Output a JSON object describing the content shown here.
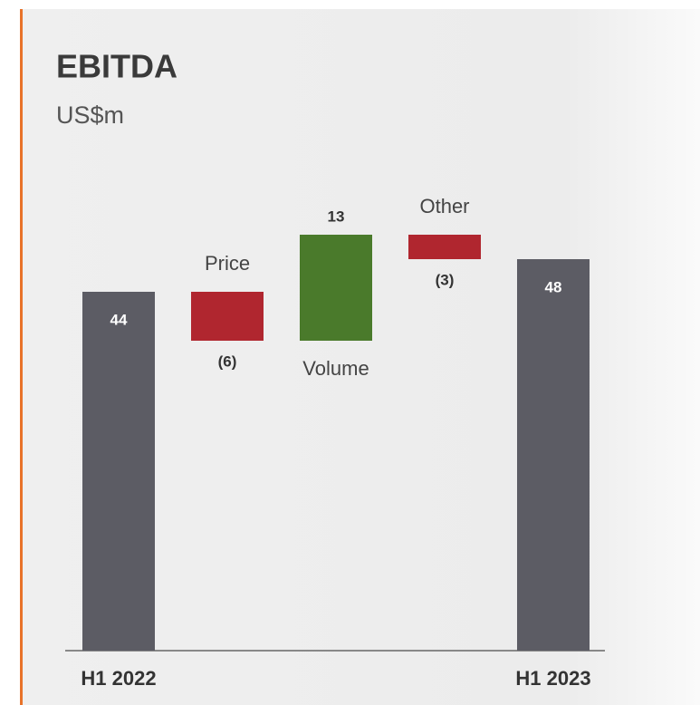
{
  "chart_data": {
    "type": "waterfall",
    "title": "EBITDA",
    "subtitle": "US$m",
    "categories": [
      "H1 2022",
      "Price",
      "Volume",
      "Other",
      "H1 2023"
    ],
    "values": [
      44,
      -6,
      13,
      -3,
      48
    ],
    "value_labels": [
      "44",
      "(6)",
      "13",
      "(3)",
      "48"
    ],
    "measure": [
      "total",
      "relative",
      "relative",
      "relative",
      "total"
    ],
    "colors": [
      "#5c5c64",
      "#b0262f",
      "#4a7a2b",
      "#b0262f",
      "#5c5c64"
    ]
  }
}
